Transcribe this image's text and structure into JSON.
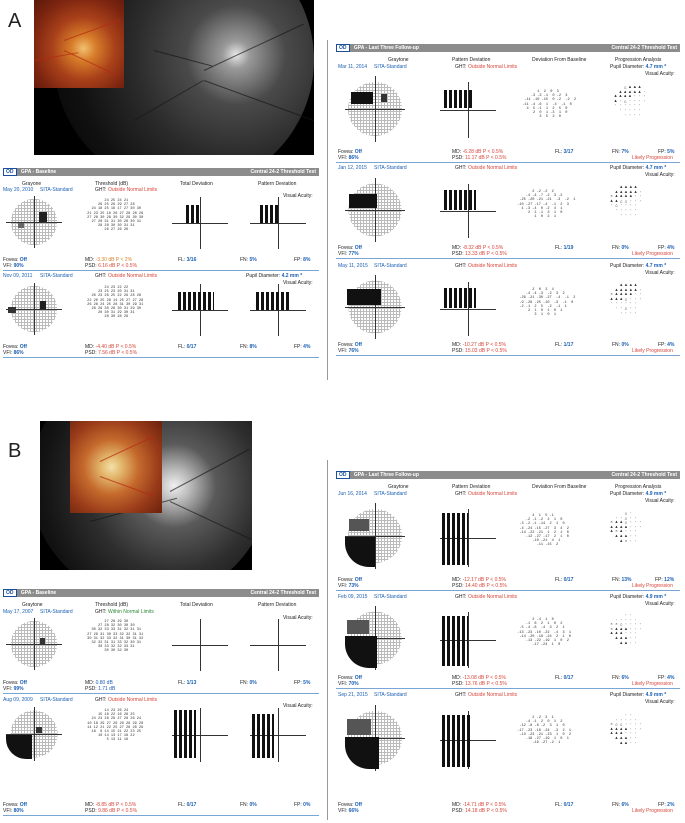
{
  "panels": {
    "a": "A",
    "b": "B"
  },
  "od": "OD",
  "a_baseline": {
    "header_title": "GPA - Baseline",
    "header_test": "Central 24-2 Threshold Test",
    "cols": [
      "Grayone",
      "Threshold (dB)",
      "Total Deviation",
      "Pattern Deviation"
    ],
    "visual_acuity": "Visual Acuity:",
    "exam1": {
      "date": "May 20, 2010",
      "strategy": "SITA-Standard",
      "ght_label": "GHT:",
      "ght": "Outside Normal Limits",
      "fovea_label": "Fovea:",
      "fovea": "Off",
      "vfi_label": "VFI:",
      "vfi": "90%",
      "md_label": "MD:",
      "md": "-3.30 dB P < 2%",
      "psd_label": "PSD:",
      "psd": "6.16 dB P < 0.5%",
      "fl_label": "FL:",
      "fl": "3/16",
      "fn_label": "FN:",
      "fn": "5%",
      "fp_label": "FP:",
      "fp": "8%"
    },
    "exam2": {
      "date": "Nov 09, 2011",
      "strategy": "SITA-Standard",
      "ght_label": "GHT:",
      "ght": "Outside Normal Limits",
      "pupil_label": "Pupil Diameter:",
      "pupil": "4.2 mm *",
      "fovea_label": "Fovea:",
      "fovea": "Off",
      "vfi_label": "VFI:",
      "vfi": "86%",
      "md_label": "MD:",
      "md": "-4.40 dB P < 0.5%",
      "psd_label": "PSD:",
      "psd": "7.56 dB P < 0.5%",
      "fl_label": "FL:",
      "fl": "0/17",
      "fn_label": "FN:",
      "fn": "8%",
      "fp_label": "FP:",
      "fp": "4%"
    }
  },
  "a_followup": {
    "header_title": "GPA - Last Three Follow-up",
    "header_test": "Central 24-2 Threshold Test",
    "cols": [
      "Graytone",
      "Pattern Deviation",
      "Deviation From Baseline",
      "Progression Analysis"
    ],
    "exam1": {
      "date": "Mar 11, 2014",
      "strategy": "SITA-Standard",
      "ght_label": "GHT:",
      "ght": "Outside Normal Limits",
      "pupil_label": "Pupil Diameter:",
      "pupil": "4.7 mm *",
      "va": "Visual Acuity:",
      "fovea_label": "Fovea:",
      "fovea": "Off",
      "vfi_label": "VFI:",
      "vfi": "86%",
      "md_label": "MD:",
      "md": "-6.28 dB P < 0.5%",
      "psd_label": "PSD:",
      "psd": "11.17 dB P < 0.5%",
      "fl_label": "FL:",
      "fl": "3/17",
      "fn_label": "FN:",
      "fn": "7%",
      "fp_label": "FP:",
      "fp": "5%",
      "progression": "Likely Progression"
    },
    "exam2": {
      "date": "Jan 12, 2015",
      "strategy": "SITA-Standard",
      "ght_label": "GHT:",
      "ght": "Outside Normal Limits",
      "pupil_label": "Pupil Diameter:",
      "pupil": "4.7 mm *",
      "va": "Visual Acuity:",
      "fovea_label": "Fovea:",
      "fovea": "Off",
      "vfi_label": "VFI:",
      "vfi": "77%",
      "md_label": "MD:",
      "md": "-8.32 dB P < 0.5%",
      "psd_label": "PSD:",
      "psd": "13.33 dB P < 0.5%",
      "fl_label": "FL:",
      "fl": "1/19",
      "fn_label": "FN:",
      "fn": "0%",
      "fp_label": "FP:",
      "fp": "4%",
      "progression": "Likely Progression"
    },
    "exam3": {
      "date": "May 11, 2015",
      "strategy": "SITA-Standard",
      "ght_label": "GHT:",
      "ght": "Outside Normal Limits",
      "pupil_label": "Pupil Diameter:",
      "pupil": "4.7 mm *",
      "va": "Visual Acuity:",
      "fovea_label": "Fovea:",
      "fovea": "Off",
      "vfi_label": "VFI:",
      "vfi": "76%",
      "md_label": "MD:",
      "md": "-10.27 dB P < 0.5%",
      "psd_label": "PSD:",
      "psd": "15.03 dB P < 0.5%",
      "fl_label": "FL:",
      "fl": "1/17",
      "fn_label": "FN:",
      "fn": "0%",
      "fp_label": "FP:",
      "fp": "4%",
      "progression": "Likely Progression"
    }
  },
  "b_baseline": {
    "header_title": "GPA - Baseline",
    "header_test": "Central 24-2 Threshold Test",
    "cols": [
      "Graytone",
      "Threshold (dB)",
      "Total Deviation",
      "Pattern Deviation"
    ],
    "visual_acuity": "Visual Acuity:",
    "exam1": {
      "date": "May 17, 2007",
      "strategy": "SITA-Standard",
      "ght_label": "GHT:",
      "ght": "Within Normal Limits",
      "fovea_label": "Fovea:",
      "fovea": "Off",
      "vfi_label": "VFI:",
      "vfi": "99%",
      "md_label": "MD:",
      "md": "0.80 dB",
      "psd_label": "PSD:",
      "psd": "1.71 dB",
      "fl_label": "FL:",
      "fl": "1/13",
      "fn_label": "FN:",
      "fn": "0%",
      "fp_label": "FP:",
      "fp": "5%"
    },
    "exam2": {
      "date": "Aug 09, 2009",
      "strategy": "SITA-Standard",
      "ght_label": "GHT:",
      "ght": "Outside Normal Limits",
      "fovea_label": "Fovea:",
      "fovea": "Off",
      "vfi_label": "VFI:",
      "vfi": "80%",
      "md_label": "MD:",
      "md": "-8.85 dB P < 0.5%",
      "psd_label": "PSD:",
      "psd": "9.86 dB P < 0.5%",
      "fl_label": "FL:",
      "fl": "0/17",
      "fn_label": "FN:",
      "fn": "0%",
      "fp_label": "FP:",
      "fp": "0%"
    }
  },
  "b_followup": {
    "header_title": "GPA - Last Three Follow-up",
    "header_test": "Central 24-2 Threshold Test",
    "cols": [
      "Graytone",
      "Pattern Deviation",
      "Deviation From Baseline",
      "Progression Analysis"
    ],
    "exam1": {
      "date": "Jun 16, 2014",
      "strategy": "SITA-Standard",
      "ght_label": "GHT:",
      "ght": "Outside Normal Limits",
      "pupil_label": "Pupil Diameter:",
      "pupil": "4.9 mm *",
      "va": "Visual Acuity:",
      "fovea_label": "Fovea:",
      "fovea": "Off",
      "vfi_label": "VFI:",
      "vfi": "73%",
      "md_label": "MD:",
      "md": "-12.17 dB P < 0.5%",
      "psd_label": "PSD:",
      "psd": "14.40 dB P < 0.5%",
      "fl_label": "FL:",
      "fl": "0/17",
      "fn_label": "FN:",
      "fn": "13%",
      "fp_label": "FP:",
      "fp": "12%",
      "progression": "Likely Progression"
    },
    "exam2": {
      "date": "Feb 09, 2015",
      "strategy": "SITA-Standard",
      "ght_label": "GHT:",
      "ght": "Outside Normal Limits",
      "pupil_label": "Pupil Diameter:",
      "pupil": "4.9 mm *",
      "va": "Visual Acuity:",
      "fovea_label": "Fovea:",
      "fovea": "Off",
      "vfi_label": "VFI:",
      "vfi": "70%",
      "md_label": "MD:",
      "md": "-13.08 dB P < 0.5%",
      "psd_label": "PSD:",
      "psd": "13.76 dB P < 0.5%",
      "fl_label": "FL:",
      "fl": "0/17",
      "fn_label": "FN:",
      "fn": "6%",
      "fp_label": "FP:",
      "fp": "4%",
      "progression": "Likely Progression"
    },
    "exam3": {
      "date": "Sep 21, 2015",
      "strategy": "SITA-Standard",
      "ght_label": "GHT:",
      "ght": "Outside Normal Limits",
      "pupil_label": "Pupil Diameter:",
      "pupil": "4.9 mm *",
      "va": "Visual Acuity:",
      "fovea_label": "Fovea:",
      "fovea": "Off",
      "vfi_label": "VFI:",
      "vfi": "66%",
      "md_label": "MD:",
      "md": "-14.71 dB P < 0.5%",
      "psd_label": "PSD:",
      "psd": "14.18 dB P < 0.5%",
      "fl_label": "FL:",
      "fl": "0/17",
      "fn_label": "FN:",
      "fn": "6%",
      "fp_label": "FP:",
      "fp": "2%",
      "progression": "Likely Progression"
    }
  },
  "threshold": {
    "a1": "         24 25 24 21\n      26 25 29 29 27 28\n   24 18 25 16 17 27 30 30\n 21 23 25 18 26 27 28 28 29\n 27 28 30 28 30 32 29 30 30\n   27 28 31 31 30 26 30 31\n      28 28 30 30 31 31\n         26 27 26 26",
    "a2": "         24 23 22 22\n      23 25 23 20 31 31\n   26 23 26 25 22 29 28 28\n 22 20 25 28 14 25 27 27 28\n 26 28 24 25 28 31 30 29 31\n   28 29 30 28 30 31 29 30\n      28 30 31 29 30 31\n         28 30 28 29",
    "b1": "         27 28 29 30\n      27 28 32 30 30 30\n   30 32 33 33 31 32 31 31\n 27 29 31 30 33 32 32 31 31\n 30 31 32 33 32 31 30 31 32\n   32 32 31 31 33 32 30 31\n      30 33 32 32 33 31\n         30 30 32 30",
    "b2": "         14 23 26 24\n      15 18 22 16 28 25\n   24 24 28 29 27 28 26 24\n 10 18 29 27 26 28 29 29 28\n 14 12 21 22 25 27 28 26 29\n   18  8 14 15 21 22 23 25\n      10 14 13 17 18 22\n          5 13 11 16"
  },
  "dfb": {
    "a1": "        1  2  0  3\n     -3 -3 -1  0 -2  3\n  -11 -10 -15  0 -2  -2  2\n -11 -4 -6  1  -4  -1  0\n   4  5 -1  1  2  5  0\n      2  0  1 -3  1  0\n         3  5  2  0",
    "a2": "        2 -2 -2  2\n     -4 -4 -7 -2  3 -2\n  -25 -20 -21 -21  -3  -2  1\n -10 -27 -17 -4  -1  2  3\n   1 -3 -4  0 -2  4  1\n      2  1 -1  3  1  0\n         1  0  2  1",
    "a3": "        2  0  2  4\n     -4 -4 -3  -2  3  2\n  -26 -21 -30 -27  -4  -1  2\n  -9 -26 -25 -10  -3  -1  0\n  -2 -1  2  5  -2  -1  1\n      2  1  0  1  0  1\n         3  1  0  1",
    "b1": "        4  1  5 -1\n     -2 -1 -2  2  1  0\n  -3 -2 -1 -14  2  1  0\n  -4 -24 -15 -27  3  4  2\n  -14 -22 -21  1  2  1  0\n     -12 -27 -17  2  1  0\n        -10 -21  4  1\n          -11 -15  2",
    "b2": "        2 -4  1  0\n     -1  6  2  1  0  2\n  -5 -4 -8  -4  3  2  1\n -13 -23 -10 -22  -4  3  1\n  -14 -20 -18 -24  2  1  0\n     -13 -22 -19  1  0  2\n        -17 -24  1  0",
    "b3": "        2 -2  3  1\n     -4 -1  2  0  1  2\n  -12 -8 -6 -2  3  1  0\n -17 -23 -18 -24  -3  2  1\n  -13 -23 -21 -23  1  0  2\n     -18 -27 -19  1  0  1\n        -19 -27 -2  1"
  }
}
